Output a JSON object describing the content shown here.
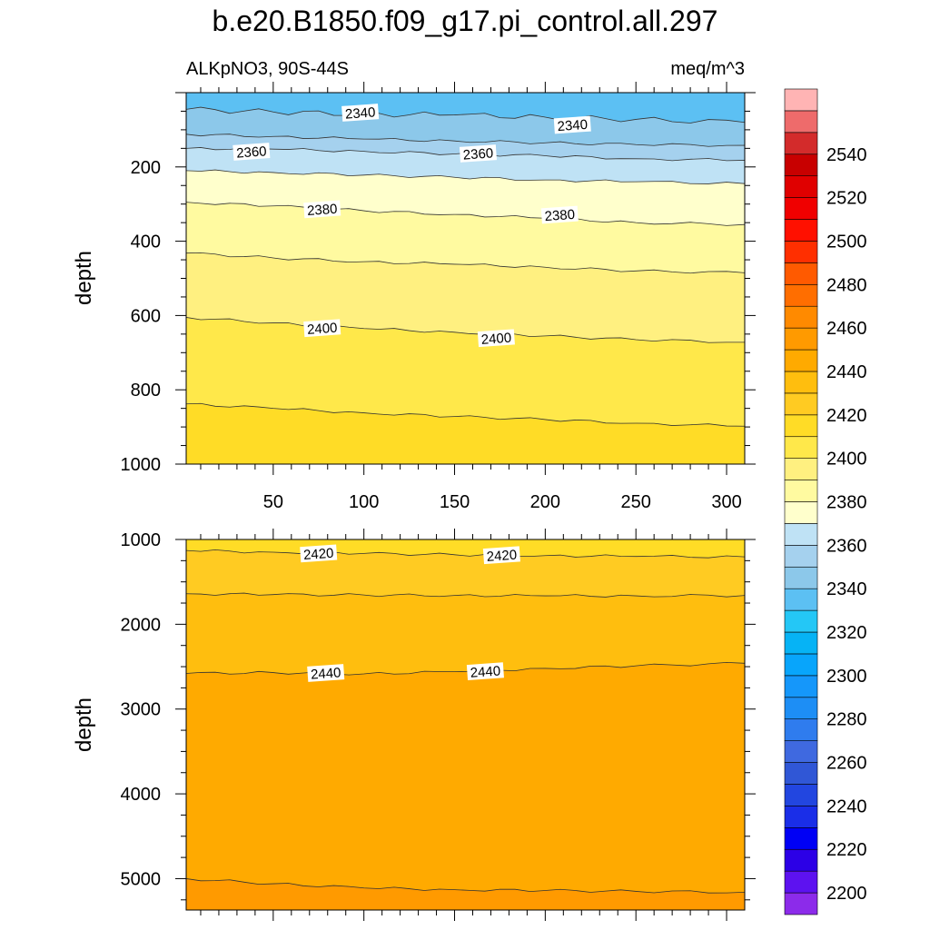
{
  "chart_data": {
    "type": "contour",
    "title": "b.e20.B1850.f09_g17.pi_control.all.297",
    "left_subtitle": "ALKpNO3, 90S-44S",
    "right_subtitle": "meq/m^3",
    "colorbar": {
      "levels": [
        2190,
        2200,
        2210,
        2220,
        2230,
        2240,
        2250,
        2260,
        2270,
        2280,
        2290,
        2300,
        2310,
        2320,
        2330,
        2340,
        2350,
        2360,
        2370,
        2380,
        2390,
        2400,
        2410,
        2420,
        2430,
        2440,
        2450,
        2460,
        2470,
        2480,
        2490,
        2500,
        2510,
        2520,
        2530,
        2540,
        2550,
        2560
      ],
      "colors": [
        "#8c2bea",
        "#5d12f0",
        "#2c00e6",
        "#0000f5",
        "#1a2ee8",
        "#2246e0",
        "#3057d6",
        "#3f69e0",
        "#2f7cee",
        "#1d8ef5",
        "#1597fa",
        "#08a5fb",
        "#06b3f5",
        "#24c7f6",
        "#5cc0f3",
        "#8cc8ea",
        "#a5d1ee",
        "#bfe2f5",
        "#ffffcc",
        "#fffaa0",
        "#fff080",
        "#ffe84a",
        "#ffdc26",
        "#ffcb22",
        "#ffbe0e",
        "#ffaa00",
        "#ff9a00",
        "#ff8a00",
        "#ff6e00",
        "#ff5a00",
        "#ff2f00",
        "#ff1000",
        "#f00000",
        "#e00000",
        "#c80000",
        "#d32b2b",
        "#ee6b6b",
        "#ffb4b4"
      ],
      "tick_labels": [
        "2200",
        "2220",
        "2240",
        "2260",
        "2280",
        "2300",
        "2320",
        "2340",
        "2360",
        "2380",
        "2400",
        "2420",
        "2440",
        "2460",
        "2480",
        "2500",
        "2520",
        "2540"
      ]
    },
    "panels": [
      {
        "name": "upper",
        "ylabel": "depth",
        "xlim": [
          2,
          310
        ],
        "ylim": [
          1000,
          0
        ],
        "x_ticks": [
          50,
          100,
          150,
          200,
          250,
          300
        ],
        "x_tick_labels": [
          "50",
          "100",
          "150",
          "200",
          "250",
          "300"
        ],
        "y_ticks": [
          200,
          400,
          600,
          800,
          1000
        ],
        "y_tick_labels": [
          "200",
          "400",
          "600",
          "800",
          "1000"
        ],
        "contours": [
          {
            "level": 2340,
            "x": [
              2,
              50,
              100,
              150,
              200,
              250,
              310
            ],
            "depth": [
              45,
              52,
              58,
              60,
              66,
              72,
              80
            ]
          },
          {
            "level": 2350,
            "x": [
              2,
              50,
              100,
              150,
              200,
              250,
              310
            ],
            "depth": [
              112,
              118,
              125,
              130,
              135,
              140,
              142
            ]
          },
          {
            "level": 2360,
            "x": [
              2,
              50,
              100,
              150,
              200,
              250,
              310
            ],
            "depth": [
              150,
              152,
              158,
              165,
              170,
              178,
              182
            ]
          },
          {
            "level": 2370,
            "x": [
              2,
              50,
              100,
              150,
              200,
              250,
              310
            ],
            "depth": [
              210,
              215,
              222,
              228,
              235,
              240,
              245
            ]
          },
          {
            "level": 2380,
            "x": [
              2,
              50,
              100,
              150,
              200,
              250,
              310
            ],
            "depth": [
              295,
              305,
              318,
              328,
              338,
              350,
              355
            ]
          },
          {
            "level": 2390,
            "x": [
              2,
              50,
              100,
              150,
              200,
              250,
              310
            ],
            "depth": [
              432,
              445,
              455,
              462,
              470,
              480,
              485
            ]
          },
          {
            "level": 2400,
            "x": [
              2,
              50,
              100,
              150,
              200,
              250,
              310
            ],
            "depth": [
              605,
              620,
              635,
              645,
              655,
              665,
              672
            ]
          },
          {
            "level": 2410,
            "x": [
              2,
              50,
              100,
              150,
              200,
              250,
              310
            ],
            "depth": [
              838,
              850,
              862,
              872,
              880,
              890,
              898
            ]
          }
        ],
        "contour_labels": [
          {
            "text": "2340",
            "x": 98,
            "depth": 55
          },
          {
            "text": "2340",
            "x": 215,
            "depth": 88
          },
          {
            "text": "2360",
            "x": 38,
            "depth": 160
          },
          {
            "text": "2360",
            "x": 163,
            "depth": 165
          },
          {
            "text": "2380",
            "x": 77,
            "depth": 315
          },
          {
            "text": "2380",
            "x": 208,
            "depth": 330
          },
          {
            "text": "2400",
            "x": 77,
            "depth": 635
          },
          {
            "text": "2400",
            "x": 173,
            "depth": 662
          }
        ]
      },
      {
        "name": "lower",
        "ylabel": "depth",
        "xlim": [
          2,
          310
        ],
        "ylim": [
          5370,
          1000
        ],
        "x_ticks": [
          50,
          100,
          150,
          200,
          250,
          300
        ],
        "y_ticks": [
          1000,
          2000,
          3000,
          4000,
          5000
        ],
        "y_tick_labels": [
          "1000",
          "2000",
          "3000",
          "4000",
          "5000"
        ],
        "contours": [
          {
            "level": 2420,
            "x": [
              2,
              50,
              100,
              150,
              200,
              250,
              310
            ],
            "depth": [
              1130,
              1150,
              1165,
              1180,
              1190,
              1200,
              1205
            ]
          },
          {
            "level": 2430,
            "x": [
              2,
              50,
              100,
              150,
              200,
              250,
              310
            ],
            "depth": [
              1640,
              1650,
              1655,
              1660,
              1665,
              1665,
              1660
            ]
          },
          {
            "level": 2440,
            "x": [
              2,
              50,
              100,
              150,
              200,
              250,
              310
            ],
            "depth": [
              2580,
              2570,
              2585,
              2560,
              2520,
              2490,
              2460
            ]
          },
          {
            "level": 2450,
            "x": [
              2,
              50,
              100,
              150,
              200,
              250,
              310
            ],
            "depth": [
              5000,
              5060,
              5110,
              5130,
              5140,
              5150,
              5160
            ]
          }
        ],
        "contour_labels": [
          {
            "text": "2420",
            "x": 75,
            "depth": 1170
          },
          {
            "text": "2420",
            "x": 176,
            "depth": 1190
          },
          {
            "text": "2440",
            "x": 79,
            "depth": 2580
          },
          {
            "text": "2440",
            "x": 167,
            "depth": 2560
          }
        ]
      }
    ]
  }
}
